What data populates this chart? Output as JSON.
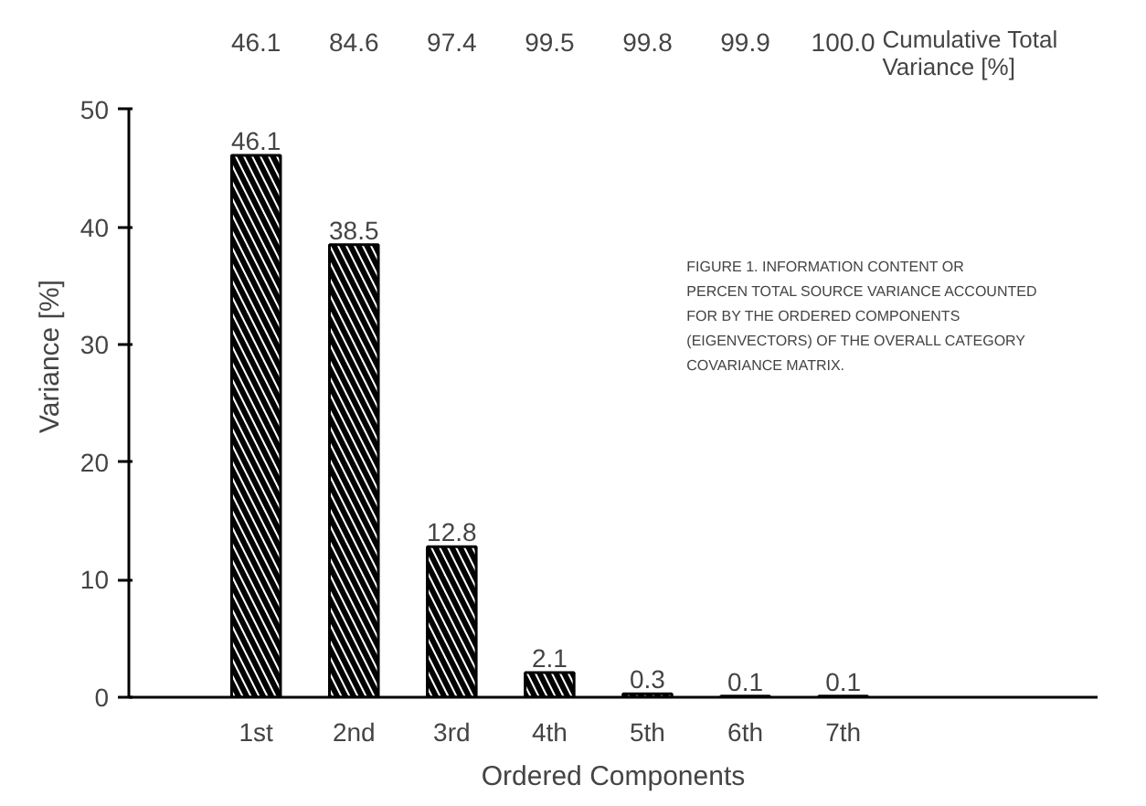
{
  "chart_data": {
    "type": "bar",
    "xlabel": "Ordered Components",
    "ylabel": "Variance [%]",
    "categories": [
      "1st",
      "2nd",
      "3rd",
      "4th",
      "5th",
      "6th",
      "7th"
    ],
    "values": [
      46.1,
      38.5,
      12.8,
      2.1,
      0.3,
      0.1,
      0.1
    ],
    "color": "#000000",
    "data_labels": true,
    "ylim": [
      0,
      50
    ],
    "yticks": [
      0,
      10,
      20,
      30,
      40,
      50
    ],
    "grid": false,
    "annotations": [
      "46.1",
      "84.6",
      "97.4",
      "99.5",
      "99.8",
      "99.9",
      "100.0",
      "Cumulative Total Variance [%]",
      "FIGURE 1. INFORMATION CONTENT OR PERCEN TOTAL SOURCE VARIANCE ACCOUNTED FOR BY THE ORDERED COMPONENTS (EIGENVECTORS) OF THE OVERALL CATEGORY COVARIANCE MATRIX."
    ]
  }
}
